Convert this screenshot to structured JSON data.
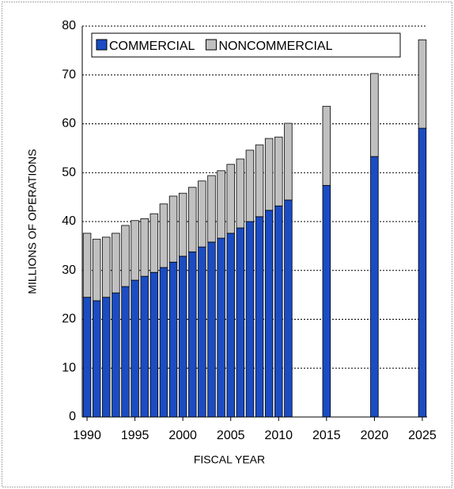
{
  "chart_data": {
    "type": "stacked-bar",
    "x_label": "FISCAL YEAR",
    "y_label": "MILLIONS OF OPERATIONS",
    "x": [
      1990,
      1991,
      1992,
      1993,
      1994,
      1995,
      1996,
      1997,
      1998,
      1999,
      2000,
      2001,
      2002,
      2003,
      2004,
      2005,
      2006,
      2007,
      2008,
      2009,
      2010,
      2011,
      2015,
      2020,
      2025
    ],
    "series": [
      {
        "name": "COMMERCIAL",
        "color": "#1b4cc2",
        "values": [
          24.5,
          23.8,
          24.5,
          25.4,
          26.7,
          28.0,
          28.8,
          29.6,
          30.6,
          31.7,
          32.9,
          33.8,
          34.8,
          35.8,
          36.6,
          37.6,
          38.7,
          40.0,
          41.0,
          42.3,
          43.2,
          44.4,
          47.4,
          53.3,
          59.1
        ]
      },
      {
        "name": "NONCOMMERCIAL",
        "color": "#c0c0c0",
        "values": [
          13.1,
          12.6,
          12.3,
          12.2,
          12.5,
          12.2,
          11.8,
          12.0,
          13.0,
          13.5,
          12.9,
          13.2,
          13.5,
          13.6,
          13.8,
          14.1,
          14.1,
          14.6,
          14.7,
          14.7,
          14.1,
          15.7,
          16.2,
          17.0,
          18.1
        ]
      }
    ],
    "xlim": [
      1989.5,
      2025.5
    ],
    "xticks": [
      1990,
      1995,
      2000,
      2005,
      2010,
      2015,
      2020,
      2025
    ],
    "ylim": [
      0,
      80
    ],
    "yticks": [
      0,
      10,
      20,
      30,
      40,
      50,
      60,
      70,
      80
    ],
    "grid": true
  }
}
